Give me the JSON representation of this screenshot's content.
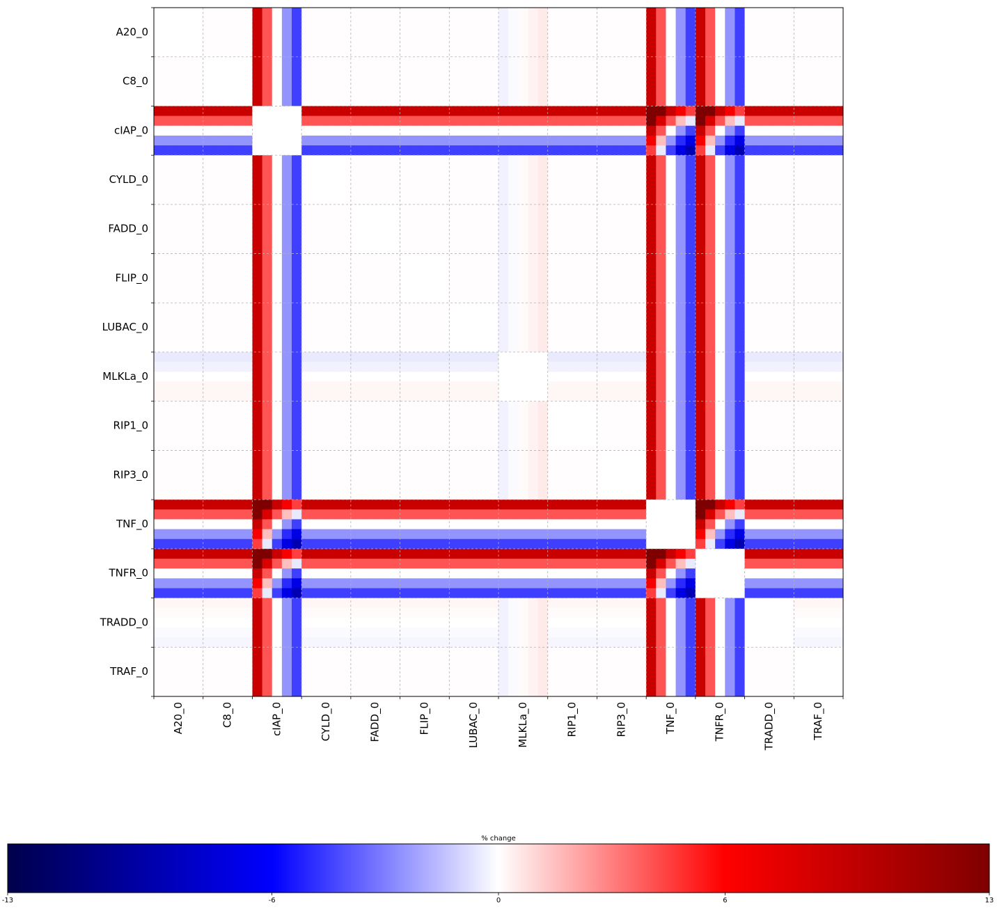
{
  "chart_data": {
    "type": "heatmap",
    "labels": [
      "A20_0",
      "C8_0",
      "cIAP_0",
      "CYLD_0",
      "FADD_0",
      "FLIP_0",
      "LUBAC_0",
      "MLKLa_0",
      "RIP1_0",
      "RIP3_0",
      "TNF_0",
      "TNFR_0",
      "TRADD_0",
      "TRAF_0"
    ],
    "sub_levels": 5,
    "active_profile": [
      9,
      4,
      0,
      -2.5,
      -4.5
    ],
    "neutral_columns": {
      "MLKLa_0": [
        -0.3,
        -0.1,
        0.1,
        0.3,
        0.5
      ]
    },
    "neutral_rows": {
      "MLKLa_0": [
        -0.5,
        -0.3,
        0.0,
        0.2,
        0.2
      ],
      "TRADD_0": [
        0.2,
        0.1,
        0.0,
        -0.1,
        -0.2
      ]
    },
    "active_labels": [
      "cIAP_0",
      "TNF_0",
      "TNFR_0"
    ],
    "grid": true,
    "colorbar": {
      "label": "% change",
      "vmin": -13,
      "vmax": 13,
      "ticks": [
        -13,
        -6,
        0,
        6,
        13
      ],
      "colormap": "seismic",
      "colors": [
        "#00004c",
        "#0000ff",
        "#ffffff",
        "#ff0000",
        "#7f0000"
      ]
    }
  }
}
